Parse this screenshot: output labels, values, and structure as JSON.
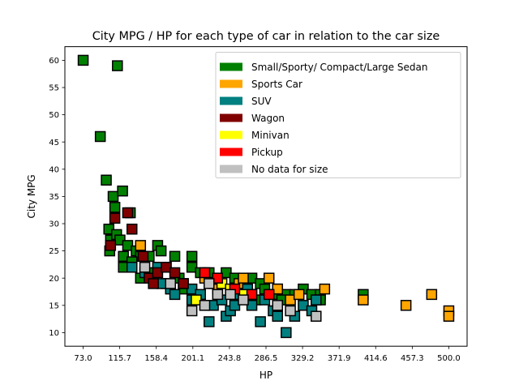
{
  "chart_data": {
    "type": "scatter",
    "title": "City MPG / HP for each type of car in relation to the car size",
    "xlabel": "HP",
    "ylabel": "City MPG",
    "xlim": [
      51.65,
      521.35
    ],
    "ylim": [
      7.5,
      62.5
    ],
    "xticks": [
      "73.0",
      "115.7",
      "158.4",
      "201.1",
      "243.8",
      "286.5",
      "329.2",
      "371.9",
      "414.6",
      "457.3",
      "500.0"
    ],
    "yticks": [
      "10",
      "15",
      "20",
      "25",
      "30",
      "35",
      "40",
      "45",
      "50",
      "55",
      "60"
    ],
    "grid": false,
    "legend_position": "top-right",
    "marker": "square",
    "series": [
      {
        "name": "Small/Sporty/ Compact/Large Sedan",
        "color": "#008000",
        "points": [
          [
            73,
            60
          ],
          [
            93,
            46
          ],
          [
            113,
            59
          ],
          [
            100,
            38
          ],
          [
            108,
            35
          ],
          [
            119,
            36
          ],
          [
            110,
            33
          ],
          [
            103,
            29
          ],
          [
            105,
            27
          ],
          [
            112,
            28
          ],
          [
            116,
            27
          ],
          [
            128,
            32
          ],
          [
            130,
            29
          ],
          [
            104,
            25
          ],
          [
            120,
            24
          ],
          [
            125,
            26
          ],
          [
            135,
            25
          ],
          [
            140,
            24
          ],
          [
            150,
            24
          ],
          [
            160,
            26
          ],
          [
            164,
            25
          ],
          [
            120,
            22
          ],
          [
            130,
            23
          ],
          [
            140,
            20
          ],
          [
            155,
            21
          ],
          [
            170,
            22
          ],
          [
            180,
            24
          ],
          [
            185,
            20
          ],
          [
            200,
            22
          ],
          [
            200,
            24
          ],
          [
            210,
            21
          ],
          [
            220,
            21
          ],
          [
            230,
            20
          ],
          [
            240,
            21
          ],
          [
            250,
            20
          ],
          [
            260,
            19
          ],
          [
            270,
            20
          ],
          [
            280,
            19
          ],
          [
            285,
            18
          ],
          [
            300,
            18
          ],
          [
            310,
            17
          ],
          [
            320,
            17
          ],
          [
            330,
            18
          ],
          [
            340,
            17
          ],
          [
            350,
            17
          ],
          [
            400,
            17
          ],
          [
            350,
            16
          ],
          [
            170,
            19
          ],
          [
            190,
            18
          ],
          [
            225,
            19
          ],
          [
            255,
            17
          ],
          [
            275,
            16
          ],
          [
            295,
            17
          ],
          [
            305,
            16
          ]
        ]
      },
      {
        "name": "Sports Car",
        "color": "#FFA500",
        "points": [
          [
            140,
            26
          ],
          [
            215,
            20
          ],
          [
            230,
            18
          ],
          [
            255,
            19
          ],
          [
            270,
            17
          ],
          [
            290,
            20
          ],
          [
            300,
            18
          ],
          [
            315,
            16
          ],
          [
            325,
            17
          ],
          [
            345,
            16
          ],
          [
            355,
            18
          ],
          [
            400,
            16
          ],
          [
            450,
            15
          ],
          [
            480,
            17
          ],
          [
            500,
            14
          ],
          [
            500,
            13
          ],
          [
            260,
            20
          ]
        ]
      },
      {
        "name": "SUV",
        "color": "#008080",
        "points": [
          [
            130,
            22
          ],
          [
            145,
            21
          ],
          [
            155,
            20
          ],
          [
            160,
            22
          ],
          [
            165,
            19
          ],
          [
            175,
            18
          ],
          [
            180,
            17
          ],
          [
            190,
            19
          ],
          [
            200,
            18
          ],
          [
            210,
            17
          ],
          [
            215,
            15
          ],
          [
            220,
            12
          ],
          [
            225,
            15
          ],
          [
            235,
            16
          ],
          [
            240,
            13
          ],
          [
            245,
            14
          ],
          [
            250,
            15
          ],
          [
            255,
            17
          ],
          [
            270,
            15
          ],
          [
            280,
            12
          ],
          [
            285,
            16
          ],
          [
            295,
            14
          ],
          [
            300,
            13
          ],
          [
            310,
            10
          ],
          [
            320,
            13
          ],
          [
            330,
            15
          ],
          [
            340,
            14
          ],
          [
            345,
            16
          ],
          [
            200,
            16
          ],
          [
            265,
            18
          ]
        ]
      },
      {
        "name": "Wagon",
        "color": "#800000",
        "points": [
          [
            105,
            26
          ],
          [
            110,
            31
          ],
          [
            125,
            32
          ],
          [
            130,
            29
          ],
          [
            143,
            24
          ],
          [
            150,
            20
          ],
          [
            160,
            21
          ],
          [
            170,
            22
          ],
          [
            180,
            21
          ],
          [
            190,
            19
          ],
          [
            155,
            19
          ]
        ]
      },
      {
        "name": "Minivan",
        "color": "#FFFF00",
        "points": [
          [
            205,
            16
          ],
          [
            235,
            19
          ],
          [
            245,
            18
          ],
          [
            260,
            17
          ]
        ]
      },
      {
        "name": "Pickup",
        "color": "#FF0000",
        "points": [
          [
            215,
            21
          ],
          [
            230,
            20
          ],
          [
            250,
            18
          ],
          [
            270,
            17
          ],
          [
            290,
            17
          ]
        ]
      },
      {
        "name": "No data for size",
        "color": "#C0C0C0",
        "points": [
          [
            145,
            22
          ],
          [
            175,
            19
          ],
          [
            200,
            14
          ],
          [
            215,
            15
          ],
          [
            220,
            19
          ],
          [
            230,
            17
          ],
          [
            245,
            17
          ],
          [
            260,
            16
          ],
          [
            300,
            15
          ],
          [
            315,
            14
          ],
          [
            345,
            13
          ]
        ]
      }
    ]
  }
}
